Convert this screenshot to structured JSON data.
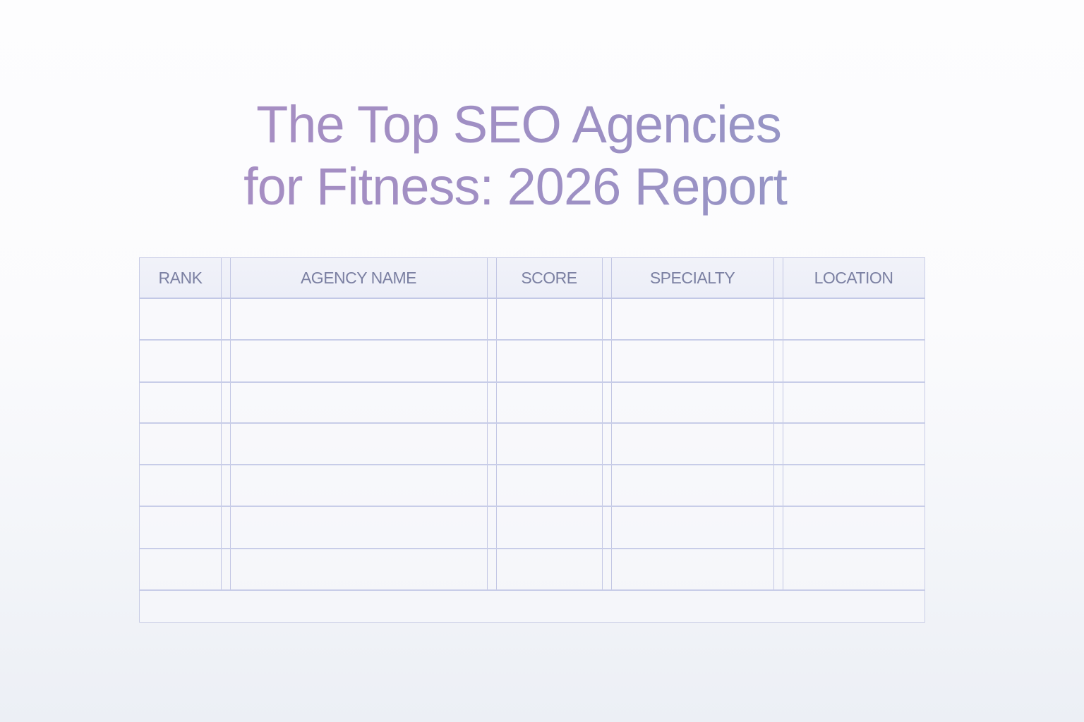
{
  "title": {
    "line1": "The Top SEO Agencies",
    "line2": "for Fitness: 2026 Report"
  },
  "table": {
    "columns": [
      "RANK",
      "AGENCY NAME",
      "SCORE",
      "SPECIALTY",
      "LOCATION"
    ],
    "rows": []
  },
  "colors": {
    "title_start": "#ad8cc2",
    "title_end": "#8e9dc8",
    "grid": "#c8cde8",
    "header_text": "#7b80a2"
  }
}
